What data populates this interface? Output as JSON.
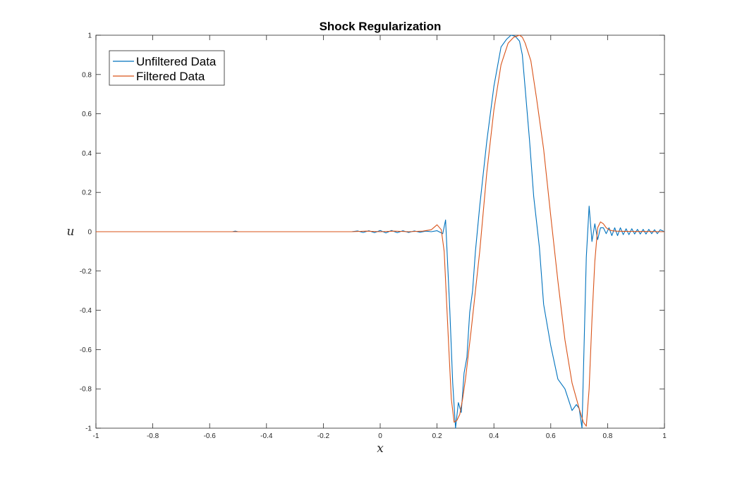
{
  "chart_data": {
    "type": "line",
    "title": "Shock Regularization",
    "xlabel": "x",
    "ylabel": "u",
    "xlim": [
      -1,
      1
    ],
    "ylim": [
      -1,
      1
    ],
    "xticks": [
      "-1",
      "-0.8",
      "-0.6",
      "-0.4",
      "-0.2",
      "0",
      "0.2",
      "0.4",
      "0.6",
      "0.8",
      "1"
    ],
    "yticks": [
      "-1",
      "-0.8",
      "-0.6",
      "-0.4",
      "-0.2",
      "0",
      "0.2",
      "0.4",
      "0.6",
      "0.8",
      "1"
    ],
    "grid": false,
    "legend_position": "top-left",
    "series": [
      {
        "name": "Unfiltered Data",
        "color": "#0072BD",
        "x": [
          -1,
          -0.52,
          -0.51,
          -0.5,
          -0.1,
          -0.08,
          -0.06,
          -0.04,
          -0.02,
          0,
          0.02,
          0.04,
          0.06,
          0.08,
          0.1,
          0.12,
          0.14,
          0.16,
          0.18,
          0.2,
          0.22,
          0.23,
          0.245,
          0.255,
          0.265,
          0.275,
          0.285,
          0.295,
          0.305,
          0.315,
          0.325,
          0.335,
          0.35,
          0.375,
          0.4,
          0.425,
          0.445,
          0.46,
          0.475,
          0.49,
          0.5,
          0.51,
          0.525,
          0.54,
          0.56,
          0.575,
          0.6,
          0.625,
          0.65,
          0.675,
          0.69,
          0.7,
          0.71,
          0.725,
          0.735,
          0.745,
          0.755,
          0.765,
          0.775,
          0.785,
          0.795,
          0.805,
          0.815,
          0.825,
          0.835,
          0.845,
          0.855,
          0.865,
          0.875,
          0.885,
          0.895,
          0.905,
          0.915,
          0.925,
          0.935,
          0.945,
          0.955,
          0.965,
          0.975,
          0.985,
          1
        ],
        "y": [
          0,
          0,
          0.003,
          0,
          0,
          0.004,
          -0.004,
          0.005,
          -0.005,
          0.006,
          -0.006,
          0.006,
          -0.005,
          0.005,
          -0.004,
          0.004,
          -0.003,
          0.003,
          0,
          0.005,
          -0.01,
          0.06,
          -0.4,
          -0.77,
          -1,
          -0.87,
          -0.92,
          -0.72,
          -0.64,
          -0.41,
          -0.3,
          -0.1,
          0.13,
          0.46,
          0.74,
          0.94,
          0.98,
          1,
          0.995,
          0.97,
          0.9,
          0.73,
          0.47,
          0.18,
          -0.08,
          -0.37,
          -0.58,
          -0.75,
          -0.8,
          -0.91,
          -0.88,
          -0.9,
          -1,
          -0.13,
          0.13,
          -0.05,
          0.04,
          -0.04,
          0.02,
          0.02,
          -0.01,
          0.02,
          -0.02,
          0.02,
          -0.02,
          0.02,
          -0.015,
          0.015,
          -0.015,
          0.015,
          -0.012,
          0.012,
          -0.012,
          0.012,
          -0.012,
          0.012,
          -0.01,
          0.01,
          -0.01,
          0.01,
          0
        ],
        "fixed": true
      },
      {
        "name": "Filtered Data",
        "color": "#D95319",
        "x": [
          -1,
          -0.1,
          -0.05,
          0,
          0.05,
          0.1,
          0.15,
          0.18,
          0.2,
          0.215,
          0.225,
          0.24,
          0.25,
          0.26,
          0.27,
          0.28,
          0.29,
          0.3,
          0.32,
          0.35,
          0.375,
          0.4,
          0.425,
          0.45,
          0.47,
          0.49,
          0.5,
          0.51,
          0.53,
          0.55,
          0.575,
          0.6,
          0.625,
          0.65,
          0.675,
          0.7,
          0.715,
          0.725,
          0.735,
          0.745,
          0.755,
          0.765,
          0.775,
          0.785,
          0.795,
          0.805,
          0.815,
          0.83,
          0.85,
          0.9,
          0.95,
          1
        ],
        "y": [
          0,
          0,
          0.003,
          0,
          0.003,
          0,
          0.003,
          0.01,
          0.035,
          0.01,
          -0.1,
          -0.55,
          -0.85,
          -0.97,
          -0.96,
          -0.93,
          -0.85,
          -0.75,
          -0.5,
          -0.1,
          0.3,
          0.62,
          0.85,
          0.96,
          0.99,
          1,
          0.99,
          0.96,
          0.87,
          0.68,
          0.42,
          0.08,
          -0.25,
          -0.55,
          -0.77,
          -0.9,
          -0.97,
          -0.99,
          -0.8,
          -0.45,
          -0.15,
          0.02,
          0.05,
          0.04,
          0.02,
          0.01,
          0.005,
          0.003,
          0.002,
          0.001,
          0.001,
          0
        ]
      }
    ]
  }
}
